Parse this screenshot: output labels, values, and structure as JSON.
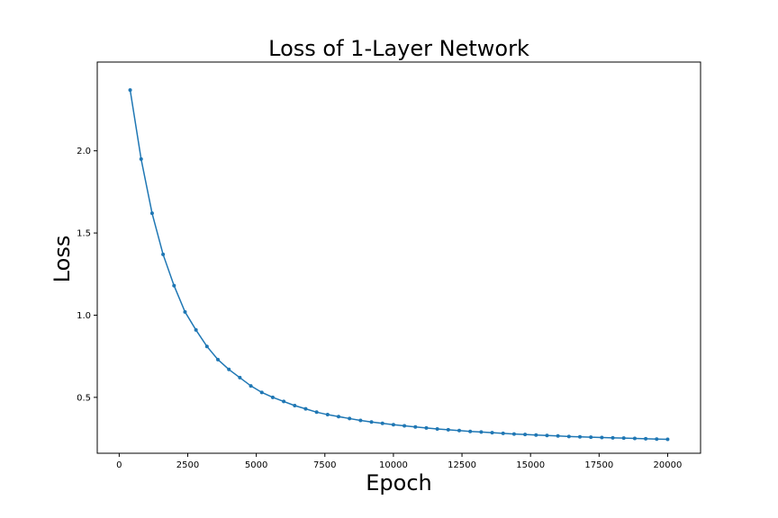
{
  "chart_data": {
    "type": "line",
    "title": "Loss of 1-Layer Network",
    "xlabel": "Epoch",
    "ylabel": "Loss",
    "xlim": [
      -800,
      21200
    ],
    "ylim": [
      0.16,
      2.54
    ],
    "xticks": [
      0,
      2500,
      5000,
      7500,
      10000,
      12500,
      15000,
      17500,
      20000
    ],
    "xtick_labels": [
      "0",
      "2500",
      "5000",
      "7500",
      "10000",
      "12500",
      "15000",
      "17500",
      "20000"
    ],
    "yticks": [
      0.5,
      1.0,
      1.5,
      2.0
    ],
    "ytick_labels": [
      "0.5",
      "1.0",
      "1.5",
      "2.0"
    ],
    "grid": false,
    "line_color": "#1f77b4",
    "series": [
      {
        "x": [
          400,
          800,
          1200,
          1600,
          2000,
          2400,
          2800,
          3200,
          3600,
          4000,
          4400,
          4800,
          5200,
          5600,
          6000,
          6400,
          6800,
          7200,
          7600,
          8000,
          8400,
          8800,
          9200,
          9600,
          10000,
          10400,
          10800,
          11200,
          11600,
          12000,
          12400,
          12800,
          13200,
          13600,
          14000,
          14400,
          14800,
          15200,
          15600,
          16000,
          16400,
          16800,
          17200,
          17600,
          18000,
          18400,
          18800,
          19200,
          19600,
          20000
        ],
        "y": [
          2.37,
          1.95,
          1.62,
          1.37,
          1.18,
          1.02,
          0.91,
          0.81,
          0.73,
          0.67,
          0.62,
          0.57,
          0.53,
          0.5,
          0.475,
          0.45,
          0.43,
          0.41,
          0.395,
          0.383,
          0.371,
          0.36,
          0.35,
          0.342,
          0.334,
          0.327,
          0.32,
          0.314,
          0.308,
          0.303,
          0.298,
          0.293,
          0.289,
          0.285,
          0.281,
          0.277,
          0.274,
          0.271,
          0.268,
          0.265,
          0.262,
          0.26,
          0.258,
          0.256,
          0.254,
          0.252,
          0.25,
          0.248,
          0.246,
          0.245
        ]
      }
    ]
  }
}
